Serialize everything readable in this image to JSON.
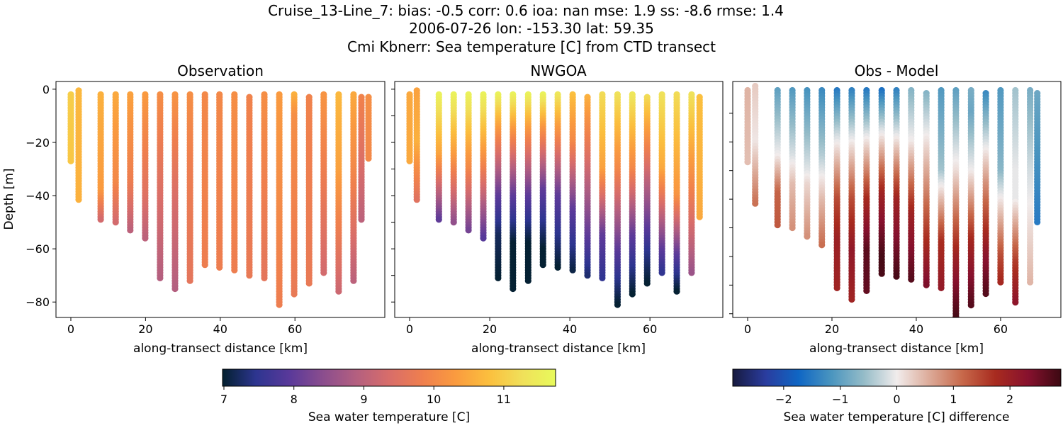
{
  "title_lines": [
    "Cruise_13-Line_7: bias: -0.5  corr: 0.6  ioa: nan  mse: 1.9  ss: -8.6  rmse: 1.4",
    "2006-07-26 lon: -153.30 lat: 59.35",
    "Cmi Kbnerr: Sea temperature [C] from CTD transect"
  ],
  "chart_data": [
    {
      "type": "scatter",
      "title": "Observation",
      "xlabel": "along-transect distance [km]",
      "ylabel": "Depth [m]",
      "xlim": [
        -3.98,
        84.06
      ],
      "ylim": [
        -85.8,
        2.9
      ],
      "xticks": [
        0,
        20,
        40,
        60
      ],
      "yticks": [
        0,
        -20,
        -40,
        -60,
        -80
      ],
      "ytick_labels": [
        "0",
        "−20",
        "−40",
        "−60",
        "−80"
      ],
      "colormap": "thermal",
      "stations": [
        {
          "x": 0,
          "top": -2,
          "profile": [
            [
              -2,
              11.0
            ],
            [
              -27,
              10.9
            ]
          ]
        },
        {
          "x": 2.1,
          "top": -0.5,
          "profile": [
            [
              -0.5,
              10.7
            ],
            [
              -42,
              10.6
            ]
          ]
        },
        {
          "x": 8.0,
          "top": -2,
          "profile": [
            [
              -2,
              10.6
            ],
            [
              -38,
              10.3
            ],
            [
              -49,
              9.3
            ]
          ]
        },
        {
          "x": 12.0,
          "top": -2,
          "profile": [
            [
              -2,
              10.5
            ],
            [
              -35,
              10.0
            ],
            [
              -50,
              9.3
            ]
          ]
        },
        {
          "x": 15.9,
          "top": -2,
          "profile": [
            [
              -2,
              10.4
            ],
            [
              -35,
              9.8
            ],
            [
              -53,
              9.0
            ]
          ]
        },
        {
          "x": 19.9,
          "top": -2,
          "profile": [
            [
              -2,
              10.3
            ],
            [
              -40,
              9.5
            ],
            [
              -56,
              9.0
            ]
          ]
        },
        {
          "x": 23.9,
          "top": -2,
          "profile": [
            [
              -2,
              10.1
            ],
            [
              -35,
              9.5
            ],
            [
              -71,
              8.9
            ]
          ]
        },
        {
          "x": 27.9,
          "top": -2,
          "profile": [
            [
              -2,
              10.2
            ],
            [
              -40,
              9.4
            ],
            [
              -75,
              8.9
            ]
          ]
        },
        {
          "x": 31.9,
          "top": -2,
          "profile": [
            [
              -2,
              10.1
            ],
            [
              -30,
              9.8
            ],
            [
              -72,
              9.6
            ]
          ]
        },
        {
          "x": 35.9,
          "top": -2,
          "profile": [
            [
              -2,
              10.0
            ],
            [
              -66,
              9.8
            ]
          ]
        },
        {
          "x": 39.8,
          "top": -2,
          "profile": [
            [
              -2,
              10.0
            ],
            [
              -67,
              9.8
            ]
          ]
        },
        {
          "x": 43.8,
          "top": -2,
          "profile": [
            [
              -2,
              10.1
            ],
            [
              -68,
              9.8
            ]
          ]
        },
        {
          "x": 47.8,
          "top": -3,
          "profile": [
            [
              -3,
              9.9
            ],
            [
              -70,
              9.7
            ]
          ]
        },
        {
          "x": 51.8,
          "top": -2,
          "profile": [
            [
              -2,
              10.1
            ],
            [
              -71,
              9.6
            ]
          ]
        },
        {
          "x": 55.8,
          "top": -2,
          "profile": [
            [
              -2,
              10.3
            ],
            [
              -81,
              9.8
            ]
          ]
        },
        {
          "x": 59.8,
          "top": -2,
          "profile": [
            [
              -2,
              10.6
            ],
            [
              -10,
              10.1
            ],
            [
              -77,
              9.7
            ]
          ]
        },
        {
          "x": 63.8,
          "top": -3,
          "profile": [
            [
              -3,
              9.9
            ],
            [
              -73,
              9.7
            ]
          ]
        },
        {
          "x": 67.7,
          "top": -2,
          "profile": [
            [
              -2,
              10.2
            ],
            [
              -69,
              9.3
            ]
          ]
        },
        {
          "x": 71.7,
          "top": -2,
          "profile": [
            [
              -2,
              10.7
            ],
            [
              -30,
              10.4
            ],
            [
              -76,
              9.2
            ]
          ]
        },
        {
          "x": 75.7,
          "top": -2,
          "profile": [
            [
              -2,
              10.5
            ],
            [
              -30,
              10.0
            ],
            [
              -72,
              9.0
            ]
          ]
        },
        {
          "x": 77.8,
          "top": -3,
          "profile": [
            [
              -3,
              9.9
            ],
            [
              -49,
              9.0
            ]
          ]
        },
        {
          "x": 79.7,
          "top": -3,
          "profile": [
            [
              -3,
              10.1
            ],
            [
              -26,
              10.0
            ]
          ]
        }
      ]
    },
    {
      "type": "scatter",
      "title": "NWGOA",
      "xlabel": "along-transect distance [km]",
      "xlim": [
        -3.72,
        78.2
      ],
      "ylim": [
        -85.8,
        2.9
      ],
      "xticks": [
        0,
        20,
        40,
        60
      ],
      "yticks": [
        0,
        -10,
        -20,
        -30,
        -40,
        -50,
        -60,
        -70,
        -80
      ],
      "colormap": "thermal",
      "stations": [
        {
          "x": 0,
          "top": -2,
          "profile": [
            [
              -2,
              10.5
            ],
            [
              -27,
              10.5
            ]
          ]
        },
        {
          "x": 1.8,
          "top": -0.5,
          "profile": [
            [
              -0.5,
              10.4
            ],
            [
              -20,
              10.6
            ],
            [
              -42,
              9.5
            ]
          ]
        },
        {
          "x": 7.3,
          "top": -2,
          "profile": [
            [
              -2,
              11.6
            ],
            [
              -25,
              10.4
            ],
            [
              -49,
              8.0
            ]
          ]
        },
        {
          "x": 11.0,
          "top": -2,
          "profile": [
            [
              -2,
              11.6
            ],
            [
              -25,
              10.3
            ],
            [
              -50,
              8.5
            ]
          ]
        },
        {
          "x": 14.7,
          "top": -2,
          "profile": [
            [
              -2,
              11.6
            ],
            [
              -30,
              10.0
            ],
            [
              -53,
              8.2
            ]
          ]
        },
        {
          "x": 18.4,
          "top": -2,
          "profile": [
            [
              -2,
              11.6
            ],
            [
              -25,
              10.2
            ],
            [
              -56,
              7.9
            ]
          ]
        },
        {
          "x": 22.1,
          "top": -2,
          "profile": [
            [
              -2,
              11.6
            ],
            [
              -18,
              10.0
            ],
            [
              -40,
              8.0
            ],
            [
              -55,
              7.2
            ],
            [
              -71,
              7.0
            ]
          ]
        },
        {
          "x": 25.8,
          "top": -2,
          "profile": [
            [
              -2,
              11.6
            ],
            [
              -18,
              10.0
            ],
            [
              -40,
              8.0
            ],
            [
              -58,
              7.0
            ],
            [
              -75,
              7.0
            ]
          ]
        },
        {
          "x": 29.6,
          "top": -2,
          "profile": [
            [
              -2,
              11.6
            ],
            [
              -18,
              10.0
            ],
            [
              -40,
              8.0
            ],
            [
              -58,
              7.0
            ],
            [
              -72,
              7.0
            ]
          ]
        },
        {
          "x": 33.3,
          "top": -2,
          "profile": [
            [
              -2,
              11.6
            ],
            [
              -15,
              10.2
            ],
            [
              -38,
              8.0
            ],
            [
              -60,
              7.0
            ],
            [
              -66,
              7.0
            ]
          ]
        },
        {
          "x": 37.0,
          "top": -2,
          "profile": [
            [
              -2,
              11.4
            ],
            [
              -18,
              10.0
            ],
            [
              -40,
              8.0
            ],
            [
              -67,
              7.0
            ]
          ]
        },
        {
          "x": 40.7,
          "top": -2,
          "profile": [
            [
              -2,
              10.8
            ],
            [
              -20,
              10.0
            ],
            [
              -45,
              8.0
            ],
            [
              -68,
              7.1
            ]
          ]
        },
        {
          "x": 44.4,
          "top": -3,
          "profile": [
            [
              -3,
              10.6
            ],
            [
              -35,
              9.0
            ],
            [
              -55,
              8.0
            ],
            [
              -70,
              7.3
            ]
          ]
        },
        {
          "x": 48.1,
          "top": -2,
          "profile": [
            [
              -2,
              11.2
            ],
            [
              -30,
              10.4
            ],
            [
              -55,
              8.0
            ],
            [
              -71,
              7.5
            ]
          ]
        },
        {
          "x": 51.9,
          "top": -2,
          "profile": [
            [
              -2,
              11.3
            ],
            [
              -30,
              10.0
            ],
            [
              -60,
              8.0
            ],
            [
              -81,
              7.0
            ]
          ]
        },
        {
          "x": 55.6,
          "top": -2,
          "profile": [
            [
              -2,
              11.4
            ],
            [
              -30,
              10.0
            ],
            [
              -55,
              8.0
            ],
            [
              -77,
              7.0
            ]
          ]
        },
        {
          "x": 59.3,
          "top": -3,
          "profile": [
            [
              -3,
              11.2
            ],
            [
              -35,
              9.0
            ],
            [
              -60,
              7.5
            ],
            [
              -73,
              7.0
            ]
          ]
        },
        {
          "x": 63.0,
          "top": -2,
          "profile": [
            [
              -2,
              11.3
            ],
            [
              -30,
              10.5
            ],
            [
              -60,
              8.0
            ],
            [
              -69,
              7.5
            ]
          ]
        },
        {
          "x": 66.7,
          "top": -2,
          "profile": [
            [
              -2,
              11.2
            ],
            [
              -40,
              10.2
            ],
            [
              -62,
              8.0
            ],
            [
              -76,
              7.0
            ]
          ]
        },
        {
          "x": 70.4,
          "top": -2,
          "profile": [
            [
              -2,
              11.3
            ],
            [
              -35,
              10.0
            ],
            [
              -69,
              8.6
            ]
          ]
        },
        {
          "x": 72.4,
          "top": -3,
          "profile": [
            [
              -3,
              10.8
            ],
            [
              -48,
              10.5
            ]
          ]
        }
      ]
    },
    {
      "type": "scatter",
      "title": "Obs - Model",
      "xlabel": "along-transect distance [km]",
      "xlim": [
        -3.53,
        74.3
      ],
      "ylim": [
        -81.3,
        1.1
      ],
      "xticks": [
        0,
        20,
        40,
        60
      ],
      "yticks": [
        -10,
        -20,
        -30,
        -40,
        -50,
        -60,
        -70,
        -80
      ],
      "colormap": "balance",
      "value": "Observation minus NWGOA",
      "station_x": [
        0,
        1.8,
        7.1,
        10.6,
        14.1,
        17.6,
        21.2,
        24.7,
        28.2,
        31.8,
        35.3,
        38.8,
        42.4,
        45.9,
        49.4,
        53.0,
        56.5,
        60.0,
        63.5,
        67.0,
        68.7
      ]
    }
  ],
  "colorbars": [
    {
      "label": "Sea water temperature [C]",
      "range": [
        6.98,
        11.74
      ],
      "ticks": [
        7,
        8,
        9,
        10,
        11
      ],
      "tick_labels": [
        "7",
        "8",
        "9",
        "10",
        "11"
      ],
      "colors": [
        "#03202f",
        "#2d3590",
        "#59399a",
        "#8a4d8e",
        "#b35f80",
        "#d86d6a",
        "#ef7f4e",
        "#fa9b3f",
        "#fbbf3e",
        "#f0e05a",
        "#e8fa5b"
      ]
    },
    {
      "label": "Sea water temperature [C] difference",
      "range": [
        -2.9,
        2.9
      ],
      "ticks": [
        -2,
        -1,
        0,
        1,
        2
      ],
      "tick_labels": [
        "−2",
        "−1",
        "0",
        "1",
        "2"
      ],
      "colors": [
        "#171a3f",
        "#2a3c9e",
        "#0f66c4",
        "#4a95bf",
        "#95bcc8",
        "#f1ecec",
        "#dcaa98",
        "#c7684a",
        "#a82b1f",
        "#87112e",
        "#3c0912"
      ]
    }
  ]
}
